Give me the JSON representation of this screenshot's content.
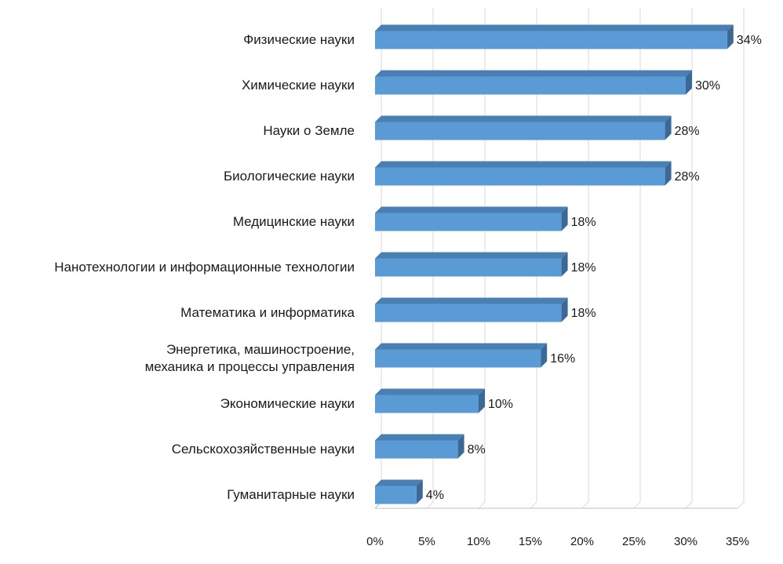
{
  "chart_data": {
    "type": "bar",
    "orientation": "horizontal",
    "style": "3d-clustered",
    "categories": [
      [
        "Физические науки"
      ],
      [
        "Химические науки"
      ],
      [
        "Науки о Земле"
      ],
      [
        "Биологические науки"
      ],
      [
        "Медицинские науки"
      ],
      [
        "Нанотехнологии и информационные технологии"
      ],
      [
        "Математика и информатика"
      ],
      [
        "Энергетика, машиностроение,",
        "механика и процессы управления"
      ],
      [
        "Экономические науки"
      ],
      [
        "Сельскохозяйственные науки"
      ],
      [
        "Гуманитарные науки"
      ]
    ],
    "values": [
      34,
      30,
      28,
      28,
      18,
      18,
      18,
      16,
      10,
      8,
      4
    ],
    "value_labels": [
      "34%",
      "30%",
      "28%",
      "28%",
      "18%",
      "18%",
      "18%",
      "16%",
      "10%",
      "8%",
      "4%"
    ],
    "xlim": [
      0,
      35
    ],
    "x_ticks": [
      "0%",
      "5%",
      "10%",
      "15%",
      "20%",
      "25%",
      "30%",
      "35%"
    ],
    "grid": true,
    "legend": "none",
    "colors": {
      "bar_front": "#5b9bd5",
      "bar_top": "#4a7fb3",
      "bar_side": "#3c6896",
      "grid": "#d9d9d9",
      "text": "#1a1a1a"
    }
  }
}
